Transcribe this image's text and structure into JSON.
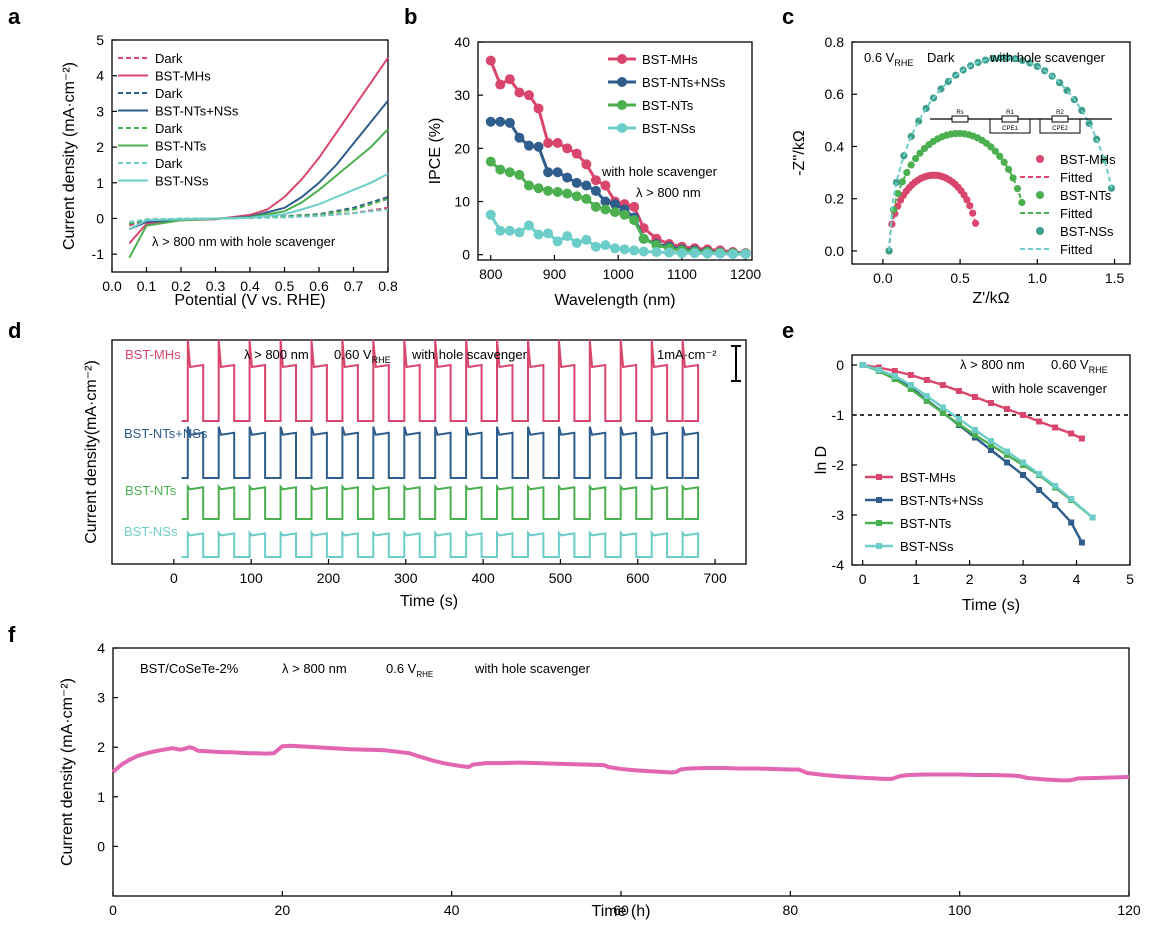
{
  "chart_data": [
    {
      "panel": "a",
      "type": "line",
      "xlabel": "Potential (V vs. RHE)",
      "ylabel": "Current density (mA·cm⁻²)",
      "xlim": [
        0.0,
        0.8
      ],
      "ylim": [
        -1.5,
        5
      ],
      "xticks": [
        0.0,
        0.1,
        0.2,
        0.3,
        0.4,
        0.5,
        0.6,
        0.7,
        0.8
      ],
      "yticks": [
        -1,
        0,
        1,
        2,
        3,
        4,
        5
      ],
      "annotation": "λ > 800 nm   with hole scavenger",
      "series": [
        {
          "name": "Dark",
          "color": "#d9466d",
          "dash": true,
          "x": [
            0.05,
            0.1,
            0.2,
            0.3,
            0.4,
            0.5,
            0.6,
            0.7,
            0.8
          ],
          "y": [
            -0.2,
            -0.05,
            -0.02,
            0.0,
            0.02,
            0.05,
            0.08,
            0.15,
            0.3
          ]
        },
        {
          "name": "BST-MHs",
          "color": "#d9466d",
          "dash": false,
          "x": [
            0.05,
            0.1,
            0.2,
            0.3,
            0.4,
            0.45,
            0.5,
            0.55,
            0.6,
            0.65,
            0.7,
            0.75,
            0.8
          ],
          "y": [
            -0.7,
            -0.15,
            -0.05,
            -0.02,
            0.1,
            0.25,
            0.6,
            1.1,
            1.7,
            2.4,
            3.1,
            3.8,
            4.5
          ]
        },
        {
          "name": "Dark",
          "color": "#2f5d8c",
          "dash": true,
          "x": [
            0.05,
            0.1,
            0.2,
            0.3,
            0.4,
            0.5,
            0.6,
            0.7,
            0.8
          ],
          "y": [
            -0.15,
            -0.04,
            -0.01,
            0.0,
            0.02,
            0.06,
            0.12,
            0.3,
            0.6
          ]
        },
        {
          "name": "BST-NTs+NSs",
          "color": "#2f5d8c",
          "dash": false,
          "x": [
            0.05,
            0.1,
            0.2,
            0.3,
            0.4,
            0.5,
            0.55,
            0.6,
            0.65,
            0.7,
            0.75,
            0.8
          ],
          "y": [
            -0.3,
            -0.1,
            -0.03,
            -0.01,
            0.05,
            0.3,
            0.6,
            1.0,
            1.5,
            2.1,
            2.7,
            3.3
          ]
        },
        {
          "name": "Dark",
          "color": "#4caf50",
          "dash": true,
          "x": [
            0.05,
            0.1,
            0.2,
            0.3,
            0.4,
            0.5,
            0.6,
            0.7,
            0.8
          ],
          "y": [
            -0.15,
            -0.03,
            -0.01,
            0.0,
            0.02,
            0.05,
            0.1,
            0.25,
            0.55
          ]
        },
        {
          "name": "BST-NTs",
          "color": "#4caf50",
          "dash": false,
          "x": [
            0.05,
            0.1,
            0.2,
            0.3,
            0.4,
            0.5,
            0.55,
            0.6,
            0.65,
            0.7,
            0.75,
            0.8
          ],
          "y": [
            -1.1,
            -0.2,
            -0.05,
            -0.01,
            0.03,
            0.2,
            0.45,
            0.8,
            1.2,
            1.6,
            2.0,
            2.5
          ]
        },
        {
          "name": "Dark",
          "color": "#6dcdc8",
          "dash": true,
          "x": [
            0.05,
            0.1,
            0.2,
            0.3,
            0.4,
            0.5,
            0.6,
            0.7,
            0.8
          ],
          "y": [
            -0.1,
            -0.02,
            -0.01,
            0.0,
            0.01,
            0.03,
            0.07,
            0.15,
            0.25
          ]
        },
        {
          "name": "BST-NSs",
          "color": "#6dcdc8",
          "dash": false,
          "x": [
            0.05,
            0.1,
            0.2,
            0.3,
            0.4,
            0.5,
            0.55,
            0.6,
            0.65,
            0.7,
            0.75,
            0.8
          ],
          "y": [
            -0.3,
            -0.05,
            -0.02,
            0.0,
            0.02,
            0.12,
            0.25,
            0.4,
            0.6,
            0.8,
            1.0,
            1.25
          ]
        }
      ]
    },
    {
      "panel": "b",
      "type": "line",
      "xlabel": "Wavelength (nm)",
      "ylabel": "IPCE (%)",
      "xlim": [
        780,
        1210
      ],
      "ylim": [
        -1,
        40
      ],
      "xticks": [
        800,
        900,
        1000,
        1100,
        1200
      ],
      "yticks": [
        0,
        10,
        20,
        30,
        40
      ],
      "annotation1": "with hole scavenger",
      "annotation2": "λ > 800 nm",
      "series": [
        {
          "name": "BST-MHs",
          "color": "#d9466d",
          "x": [
            800,
            815,
            830,
            845,
            860,
            875,
            890,
            905,
            920,
            935,
            950,
            965,
            980,
            995,
            1010,
            1025,
            1040,
            1060,
            1080,
            1100,
            1120,
            1140,
            1160,
            1180,
            1200
          ],
          "y": [
            36.5,
            32,
            33,
            30.5,
            30,
            27.5,
            21,
            21,
            20,
            19,
            17,
            14,
            13,
            10,
            9.5,
            9,
            5,
            3,
            2,
            1.5,
            1.2,
            1,
            0.8,
            0.5,
            0.3
          ]
        },
        {
          "name": "BST-NTs+NSs",
          "color": "#2f5d8c",
          "x": [
            800,
            815,
            830,
            845,
            860,
            875,
            890,
            905,
            920,
            935,
            950,
            965,
            980,
            995,
            1010,
            1025,
            1040,
            1060,
            1080,
            1100,
            1120,
            1140,
            1160,
            1180,
            1200
          ],
          "y": [
            25,
            25,
            24.8,
            22,
            20.5,
            20.3,
            15.5,
            15.5,
            14.5,
            13.5,
            13,
            12,
            10,
            9.5,
            8.5,
            7,
            3,
            2,
            1.5,
            1,
            0.8,
            0.6,
            0.4,
            0.3,
            0.2
          ]
        },
        {
          "name": "BST-NTs",
          "color": "#4caf50",
          "x": [
            800,
            815,
            830,
            845,
            860,
            875,
            890,
            905,
            920,
            935,
            950,
            965,
            980,
            995,
            1010,
            1025,
            1040,
            1060,
            1080,
            1100,
            1120,
            1140,
            1160,
            1180,
            1200
          ],
          "y": [
            17.5,
            16,
            15.5,
            15,
            13,
            12.5,
            12,
            11.8,
            11.5,
            11,
            10.5,
            9,
            8.5,
            8,
            7.5,
            6.5,
            3,
            1.8,
            1.2,
            0.8,
            0.6,
            0.5,
            0.4,
            0.3,
            0.2
          ]
        },
        {
          "name": "BST-NSs",
          "color": "#6dcdc8",
          "x": [
            800,
            815,
            830,
            845,
            860,
            875,
            890,
            905,
            920,
            935,
            950,
            965,
            980,
            995,
            1010,
            1025,
            1040,
            1060,
            1080,
            1100,
            1120,
            1140,
            1160,
            1180,
            1200
          ],
          "y": [
            7.5,
            4.5,
            4.5,
            4.2,
            5.5,
            3.8,
            4,
            2.5,
            3.5,
            2.2,
            2.8,
            1.5,
            1.8,
            1.2,
            1,
            0.8,
            0.6,
            0.5,
            0.4,
            0.3,
            0.3,
            0.2,
            0.2,
            0.1,
            0.1
          ]
        }
      ]
    },
    {
      "panel": "c",
      "type": "scatter",
      "xlabel": "Z'/kΩ",
      "ylabel": "-Z''/kΩ",
      "xlim": [
        -0.2,
        1.6
      ],
      "ylim": [
        -0.05,
        0.8
      ],
      "xticks": [
        0.0,
        0.5,
        1.0,
        1.5
      ],
      "yticks": [
        0.0,
        0.2,
        0.4,
        0.6,
        0.8
      ],
      "annotation_main": "0.6 V",
      "annotation_sub": "RHE",
      "annotation_dark": "Dark",
      "annotation_hs": "with hole scavenger",
      "circuit_labels": [
        "Rs",
        "R1",
        "CPE1",
        "R2",
        "CPE2"
      ],
      "series": [
        {
          "name": "BST-MHs",
          "color": "#d9466d",
          "center": 0.33,
          "radius": 0.29,
          "x_end": 0.6
        },
        {
          "name": "Fitted",
          "color": "#d9466d",
          "dash": true
        },
        {
          "name": "BST-NTs",
          "color": "#4caf50",
          "center": 0.49,
          "radius": 0.45,
          "x_end": 0.9
        },
        {
          "name": "Fitted",
          "color": "#4caf50",
          "dash": true
        },
        {
          "name": "BST-NSs",
          "color": "#3e9e8c",
          "center": 0.78,
          "radius": 0.74,
          "x_end": 1.48
        },
        {
          "name": "Fitted",
          "color": "#6dcdc8",
          "dash": true
        }
      ]
    },
    {
      "panel": "d",
      "type": "line",
      "xlabel": "Time (s)",
      "ylabel": "Current density(mA·cm⁻²)",
      "xlim": [
        -80,
        740
      ],
      "xticks": [
        0,
        100,
        200,
        300,
        400,
        500,
        600,
        700
      ],
      "scale_bar": "1mA·cm⁻²",
      "annotation": "λ > 800 nm",
      "annotation_v": "0.60 V",
      "annotation_sub": "RHE",
      "annotation_hs": "with hole scavenger",
      "period_s": 40,
      "on_s": 20,
      "start_s": 10,
      "end_s": 660,
      "series": [
        {
          "name": "BST-MHs",
          "color": "#d9466d",
          "amp": 1.0,
          "spike": 0.5
        },
        {
          "name": "BST-NTs+NSs",
          "color": "#2f5d8c",
          "amp": 0.8,
          "spike": 0.15
        },
        {
          "name": "BST-NTs",
          "color": "#4caf50",
          "amp": 0.55,
          "spike": 0.05
        },
        {
          "name": "BST-NSs",
          "color": "#6dcdc8",
          "amp": 0.4,
          "spike": 0.05
        }
      ]
    },
    {
      "panel": "e",
      "type": "line",
      "xlabel": "Time (s)",
      "ylabel": "ln D",
      "xlim": [
        -0.2,
        5
      ],
      "ylim": [
        -4,
        0.2
      ],
      "xticks": [
        0,
        1,
        2,
        3,
        4,
        5
      ],
      "yticks": [
        0,
        -1,
        -2,
        -3,
        -4
      ],
      "ref_line": -1,
      "annotation": "λ > 800 nm",
      "annotation_v": "0.60 V",
      "annotation_sub": "RHE",
      "annotation_hs": "with hole scavenger",
      "series": [
        {
          "name": "BST-MHs",
          "color": "#d9466d",
          "x": [
            0,
            0.3,
            0.6,
            0.9,
            1.2,
            1.5,
            1.8,
            2.1,
            2.4,
            2.7,
            3.0,
            3.3,
            3.6,
            3.9,
            4.1
          ],
          "y": [
            0,
            -0.05,
            -0.12,
            -0.2,
            -0.3,
            -0.4,
            -0.52,
            -0.64,
            -0.76,
            -0.88,
            -1.0,
            -1.13,
            -1.25,
            -1.37,
            -1.47
          ]
        },
        {
          "name": "BST-NTs+NSs",
          "color": "#2f5d8c",
          "x": [
            0,
            0.3,
            0.6,
            0.9,
            1.2,
            1.5,
            1.8,
            2.1,
            2.4,
            2.7,
            3.0,
            3.3,
            3.6,
            3.9,
            4.1
          ],
          "y": [
            0,
            -0.1,
            -0.25,
            -0.45,
            -0.7,
            -0.95,
            -1.2,
            -1.45,
            -1.7,
            -1.95,
            -2.2,
            -2.5,
            -2.8,
            -3.15,
            -3.55
          ]
        },
        {
          "name": "BST-NTs",
          "color": "#4caf50",
          "x": [
            0,
            0.3,
            0.6,
            0.9,
            1.2,
            1.5,
            1.8,
            2.1,
            2.4,
            2.7,
            3.0,
            3.3,
            3.6,
            3.9,
            4.3
          ],
          "y": [
            0,
            -0.12,
            -0.28,
            -0.48,
            -0.72,
            -0.96,
            -1.18,
            -1.4,
            -1.6,
            -1.8,
            -2.0,
            -2.2,
            -2.45,
            -2.7,
            -3.05
          ]
        },
        {
          "name": "BST-NSs",
          "color": "#6dcdc8",
          "x": [
            0,
            0.3,
            0.6,
            0.9,
            1.2,
            1.5,
            1.8,
            2.1,
            2.4,
            2.7,
            3.0,
            3.3,
            3.6,
            3.9,
            4.3
          ],
          "y": [
            0,
            -0.1,
            -0.22,
            -0.4,
            -0.62,
            -0.85,
            -1.08,
            -1.3,
            -1.52,
            -1.73,
            -1.95,
            -2.18,
            -2.42,
            -2.68,
            -3.05
          ]
        }
      ]
    },
    {
      "panel": "f",
      "type": "line",
      "xlabel": "Time (h)",
      "ylabel": "Current density (mA·cm⁻²)",
      "xlim": [
        0,
        120
      ],
      "ylim": [
        -1,
        4
      ],
      "xticks": [
        0,
        20,
        40,
        60,
        80,
        100,
        120
      ],
      "yticks": [
        0,
        1,
        2,
        3,
        4
      ],
      "annotation_sample": "BST/CoSeTe-2%",
      "annotation_light": "λ > 800 nm",
      "annotation_v": "0.6 V",
      "annotation_sub": "RHE",
      "annotation_hs": "with hole scavenger",
      "series": [
        {
          "name": "BST/CoSeTe-2%",
          "color": "#e266b1",
          "x": [
            0,
            1,
            2,
            3,
            4,
            5,
            6,
            7,
            8,
            8.5,
            9,
            9.5,
            10,
            11,
            12,
            13,
            14,
            15,
            16,
            17,
            18,
            19,
            19.5,
            20,
            21,
            22,
            24,
            26,
            28,
            30,
            32,
            34,
            35,
            36,
            37,
            38,
            39,
            40,
            41,
            42,
            42.5,
            43,
            44,
            46,
            48,
            50,
            52,
            54,
            56,
            58,
            58.5,
            60,
            62,
            64,
            66,
            66.5,
            67,
            68,
            70,
            72,
            74,
            76,
            78,
            80,
            81,
            82,
            84,
            86,
            88,
            90,
            91,
            92,
            93,
            94,
            96,
            98,
            100,
            102,
            104,
            106,
            107,
            108,
            110,
            112,
            113,
            114,
            116,
            118,
            120
          ],
          "y": [
            1.5,
            1.65,
            1.75,
            1.83,
            1.88,
            1.92,
            1.95,
            1.98,
            1.95,
            1.97,
            2.0,
            1.98,
            1.93,
            1.92,
            1.91,
            1.9,
            1.9,
            1.89,
            1.88,
            1.88,
            1.87,
            1.88,
            1.95,
            2.02,
            2.03,
            2.02,
            2.0,
            1.98,
            1.96,
            1.95,
            1.94,
            1.9,
            1.88,
            1.82,
            1.77,
            1.72,
            1.68,
            1.65,
            1.62,
            1.6,
            1.65,
            1.66,
            1.68,
            1.68,
            1.69,
            1.68,
            1.67,
            1.66,
            1.65,
            1.64,
            1.6,
            1.56,
            1.53,
            1.51,
            1.49,
            1.5,
            1.55,
            1.57,
            1.58,
            1.58,
            1.57,
            1.57,
            1.56,
            1.55,
            1.55,
            1.48,
            1.44,
            1.41,
            1.39,
            1.37,
            1.36,
            1.36,
            1.42,
            1.44,
            1.45,
            1.45,
            1.45,
            1.44,
            1.44,
            1.43,
            1.42,
            1.38,
            1.35,
            1.33,
            1.33,
            1.37,
            1.38,
            1.39,
            1.4
          ]
        }
      ]
    }
  ],
  "panel_letters": {
    "a": "a",
    "b": "b",
    "c": "c",
    "d": "d",
    "e": "e",
    "f": "f"
  }
}
